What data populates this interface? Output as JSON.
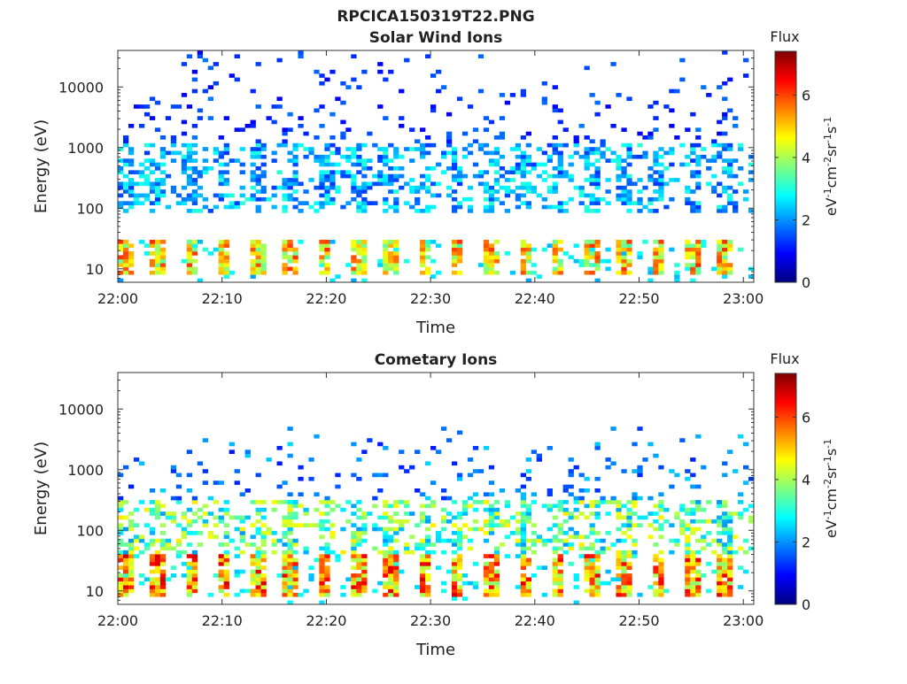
{
  "figure": {
    "title": "RPCICA150319T22.PNG"
  },
  "colormap": {
    "name": "jet",
    "stops": [
      "#00007f",
      "#0000ff",
      "#007fff",
      "#00ffff",
      "#7fff7f",
      "#ffff00",
      "#ff7f00",
      "#ff0000",
      "#7f0000"
    ]
  },
  "chart_data": [
    {
      "type": "heatmap",
      "title": "Solar Wind Ions",
      "xlabel": "Time",
      "ylabel": "Energy (eV)",
      "x_range": [
        "22:00",
        "23:01"
      ],
      "y_scale": "log",
      "ylim": [
        6,
        40000
      ],
      "x_ticks": [
        "22:00",
        "22:10",
        "22:20",
        "22:30",
        "22:40",
        "22:50",
        "23:00"
      ],
      "y_ticks": [
        "10",
        "100",
        "1000",
        "10000"
      ],
      "grid": false,
      "colorbar": {
        "title": "Flux",
        "label": "eV-1cm-2sr-1s-1",
        "range": [
          0,
          7.4
        ],
        "ticks": [
          "0",
          "2",
          "4",
          "6"
        ]
      },
      "pattern": {
        "cycle_minutes": 3.2,
        "low_band_eV": [
          8,
          30
        ],
        "low_band_peak_flux": 6.2,
        "mid_band_eV": [
          80,
          1200
        ],
        "mid_band_flux": 2.6,
        "sparse_high_eV": [
          1200,
          40000
        ],
        "sparse_high_flux": 1.3
      }
    },
    {
      "type": "heatmap",
      "title": "Cometary Ions",
      "xlabel": "Time",
      "ylabel": "Energy (eV)",
      "x_range": [
        "22:00",
        "23:01"
      ],
      "y_scale": "log",
      "ylim": [
        6,
        40000
      ],
      "x_ticks": [
        "22:00",
        "22:10",
        "22:20",
        "22:30",
        "22:40",
        "22:50",
        "23:00"
      ],
      "y_ticks": [
        "10",
        "100",
        "1000",
        "10000"
      ],
      "grid": false,
      "colorbar": {
        "title": "Flux",
        "label": "eV-1cm-2sr-1s-1",
        "range": [
          0,
          7.4
        ],
        "ticks": [
          "0",
          "2",
          "4",
          "6"
        ]
      },
      "pattern": {
        "cycle_minutes": 3.2,
        "low_band_eV": [
          8,
          40
        ],
        "low_band_peak_flux": 6.8,
        "mid_band_eV": [
          30,
          300
        ],
        "mid_band_flux": 4.0,
        "sparse_high_eV": [
          300,
          5000
        ],
        "sparse_high_flux": 1.8
      }
    }
  ]
}
